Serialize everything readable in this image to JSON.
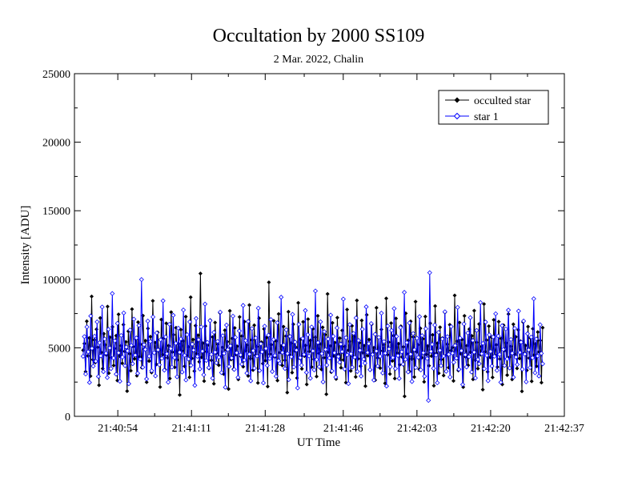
{
  "chart_data": {
    "type": "line",
    "title": "Occultation by 2000 SS109",
    "subtitle": "2 Mar. 2022, Chalin",
    "xlabel": "UT Time",
    "ylabel": "Intensity [ADU]",
    "x_ticks": [
      "21:40:54",
      "21:41:11",
      "21:41:28",
      "21:41:46",
      "21:42:03",
      "21:42:20",
      "21:42:37"
    ],
    "xlim": [
      "21:40:44",
      "21:42:37"
    ],
    "ylim": [
      0,
      25000
    ],
    "y_ticks": [
      0,
      5000,
      10000,
      15000,
      20000,
      25000
    ],
    "series": [
      {
        "name": "occulted star",
        "color": "#000000",
        "marker": "filled-diamond",
        "values": [
          4820,
          5310,
          3260,
          6940,
          4410,
          5720,
          2930,
          8750,
          4130,
          5580,
          3920,
          6350,
          5040,
          2270,
          7180,
          4660,
          3480,
          6020,
          5210,
          4470,
          8010,
          3150,
          5770,
          4280,
          6530,
          3710,
          4950,
          5890,
          2610,
          7440,
          4390,
          5160,
          3870,
          6690,
          4740,
          5430,
          1840,
          6210,
          4560,
          3330,
          7820,
          5080,
          4190,
          5640,
          2970,
          6870,
          4350,
          5250,
          3560,
          7350,
          4900,
          5520,
          2490,
          6410,
          4030,
          5810,
          3200,
          8420,
          4610,
          5380,
          3790,
          6130,
          4850,
          2140,
          7060,
          4500,
          5700,
          3410,
          6780,
          4270,
          5150,
          2760,
          7600,
          4690,
          5950,
          3580,
          6460,
          4120,
          5290,
          1560,
          6320,
          4780,
          5490,
          3650,
          7270,
          4440,
          5060,
          2850,
          8690,
          4230,
          5600,
          3300,
          6610,
          4570,
          5910,
          3980,
          10420,
          4300,
          5340,
          2570,
          6590,
          4720,
          5180,
          3500,
          7020,
          4090,
          5790,
          2380,
          6840,
          4610,
          5260,
          3730,
          7540,
          4370,
          5030,
          3090,
          6280,
          4830,
          5450,
          1990,
          7700,
          4150,
          5680,
          3440,
          6450,
          4520,
          5110,
          2690,
          7250,
          4380,
          5860,
          3620,
          6910,
          4790,
          5200,
          2950,
          8120,
          4210,
          5570,
          3370,
          6640,
          4460,
          5080,
          2440,
          7160,
          4700,
          5410,
          3850,
          6370,
          4060,
          5740,
          2180,
          9780,
          4540,
          5230,
          3280,
          6970,
          4320,
          5490,
          2610,
          7470,
          4650,
          5120,
          3710,
          6540,
          4090,
          5850,
          1740,
          7630,
          4480,
          5330,
          3190,
          6720,
          4760,
          5040,
          2800,
          8280,
          4240,
          5620,
          3470,
          6890,
          4400,
          5170,
          2330,
          7090,
          4730,
          5540,
          3600,
          6380,
          4160,
          5770,
          2910,
          7330,
          4590,
          5280,
          3420,
          6490,
          4270,
          5960,
          1610,
          8930,
          4680,
          5140,
          3230,
          6820,
          4410,
          5380,
          2720,
          7200,
          4530,
          5700,
          3550,
          6260,
          4120,
          5090,
          2460,
          7790,
          4820,
          5470,
          3310,
          6600,
          4350,
          5820,
          2880,
          8450,
          4200,
          5360,
          3670,
          6990,
          4640,
          5150,
          2200,
          7400,
          4430,
          5600,
          3380,
          6710,
          4580,
          5010,
          2640,
          7920,
          4260,
          5730,
          3520,
          6340,
          4770,
          5230,
          2410,
          8600,
          4490,
          5410,
          3090,
          6800,
          4050,
          5890,
          2760,
          7140,
          4620,
          5300,
          3760,
          6570,
          4330,
          5070,
          1460,
          7510,
          4560,
          5530,
          3270,
          6930,
          4180,
          5790,
          2870,
          8370,
          4700,
          5210,
          3440,
          6420,
          4280,
          5650,
          2520,
          7280,
          4510,
          5120,
          3690,
          6780,
          4390,
          5940,
          2240,
          8050,
          4610,
          5330,
          3150,
          6500,
          4150,
          5710,
          2980,
          7580,
          4450,
          5260,
          3560,
          6680,
          4800,
          5020,
          2580,
          8820,
          4230,
          5480,
          3340,
          6840,
          4570,
          5600,
          2130,
          7330,
          4340,
          5150,
          3720,
          6360,
          4680,
          5870,
          2700,
          7710,
          4100,
          5400,
          3480,
          6730,
          4500,
          5090,
          1950,
          8190,
          4720,
          5560,
          3250,
          6580,
          4300,
          5770,
          2840,
          7040,
          4450,
          5220,
          3600,
          6910,
          4180,
          5680,
          2330,
          6650,
          4790,
          5350,
          3010,
          7460,
          4330,
          5110,
          2690,
          6720,
          4540,
          5800,
          3500,
          6310,
          4220,
          5480,
          1830,
          6880,
          4600,
          5170,
          3360,
          6540,
          4250,
          5720,
          2560,
          6390,
          4480,
          5280,
          3650,
          6150,
          4700,
          5530,
          2460,
          6470
        ]
      },
      {
        "name": "star 1",
        "color": "#0000ff",
        "marker": "open-diamond",
        "values": [
          4380,
          5820,
          3090,
          6520,
          4710,
          2470,
          7320,
          4960,
          3660,
          5840,
          4020,
          6890,
          2910,
          5370,
          4410,
          7980,
          3260,
          5640,
          4600,
          2830,
          6350,
          4980,
          3480,
          8960,
          4250,
          5510,
          3080,
          6780,
          4630,
          2560,
          5900,
          4320,
          7540,
          3690,
          5050,
          4780,
          2380,
          6300,
          5180,
          3840,
          7090,
          4460,
          5720,
          3140,
          6630,
          4170,
          9980,
          3580,
          5230,
          4880,
          2730,
          6950,
          4390,
          5460,
          3330,
          7250,
          4640,
          2950,
          6080,
          4850,
          3760,
          5590,
          4230,
          8430,
          3370,
          5790,
          4560,
          2490,
          6720,
          4940,
          3590,
          7370,
          4280,
          5330,
          2880,
          6430,
          4670,
          5650,
          3230,
          7760,
          4450,
          2650,
          5960,
          4180,
          6890,
          3720,
          5260,
          4830,
          2260,
          7140,
          4370,
          5590,
          3460,
          6520,
          4750,
          3030,
          8190,
          4080,
          5400,
          3550,
          6980,
          4520,
          2780,
          6130,
          4680,
          3900,
          5470,
          4310,
          7600,
          3190,
          5880,
          4590,
          2120,
          6660,
          4870,
          3640,
          5140,
          4260,
          7310,
          3420,
          5760,
          4630,
          2840,
          6230,
          4480,
          3800,
          8090,
          4100,
          5530,
          3150,
          6920,
          4540,
          2590,
          6400,
          4790,
          3510,
          5720,
          4390,
          7890,
          3340,
          5290,
          4700,
          2440,
          6580,
          4950,
          3710,
          5920,
          4210,
          7060,
          3270,
          5600,
          4440,
          2920,
          6830,
          4060,
          3860,
          8690,
          4660,
          5200,
          3490,
          6310,
          4580,
          2680,
          5830,
          4340,
          7440,
          3600,
          5420,
          4830,
          2070,
          6710,
          4270,
          3730,
          5680,
          4510,
          7720,
          3200,
          5950,
          4400,
          2780,
          6520,
          4770,
          3390,
          9150,
          4140,
          5380,
          3620,
          6900,
          4580,
          2510,
          6180,
          4880,
          3740,
          5640,
          4250,
          7390,
          3310,
          5840,
          4630,
          2860,
          6450,
          4360,
          3950,
          5270,
          4720,
          8560,
          3450,
          5730,
          4480,
          2390,
          6690,
          4560,
          3580,
          6050,
          4310,
          7180,
          3270,
          5540,
          4820,
          2930,
          6360,
          4170,
          3880,
          7990,
          4660,
          5310,
          3400,
          6770,
          4510,
          2640,
          5990,
          4760,
          3670,
          5760,
          4380,
          7530,
          3160,
          5450,
          4600,
          2210,
          6590,
          4920,
          3620,
          6270,
          4280,
          7860,
          3480,
          5830,
          4430,
          2760,
          6480,
          4700,
          3800,
          9050,
          4160,
          5380,
          3240,
          6810,
          4530,
          2540,
          6040,
          4860,
          3560,
          5700,
          4300,
          7270,
          3390,
          5890,
          4640,
          2920,
          6390,
          4220,
          1160,
          10480,
          4740,
          5250,
          3500,
          6660,
          4460,
          2450,
          6130,
          4820,
          3690,
          5640,
          4390,
          7630,
          3280,
          5810,
          4520,
          2870,
          6550,
          4610,
          3940,
          5170,
          4240,
          7950,
          3430,
          5710,
          4790,
          2320,
          6740,
          4490,
          3600,
          6080,
          4350,
          7200,
          3230,
          5540,
          4680,
          2800,
          6270,
          4150,
          3840,
          8300,
          4570,
          5330,
          3470,
          6880,
          4440,
          2600,
          5950,
          4730,
          3670,
          5790,
          4380,
          7480,
          3350,
          5860,
          4520,
          2480,
          6610,
          4880,
          3710,
          6370,
          4190,
          7750,
          3520,
          5610,
          4610,
          2850,
          6420,
          4320,
          3780,
          7680,
          4660,
          5410,
          3440,
          6950,
          4540,
          2520,
          6030,
          4850,
          3560,
          5780,
          4270,
          8580,
          3180,
          5650,
          4400,
          2940,
          6680,
          4590,
          3830
        ]
      }
    ]
  },
  "legend": {
    "position": "top-right"
  },
  "colors": {
    "background": "#ffffff",
    "axes": "#000000"
  }
}
